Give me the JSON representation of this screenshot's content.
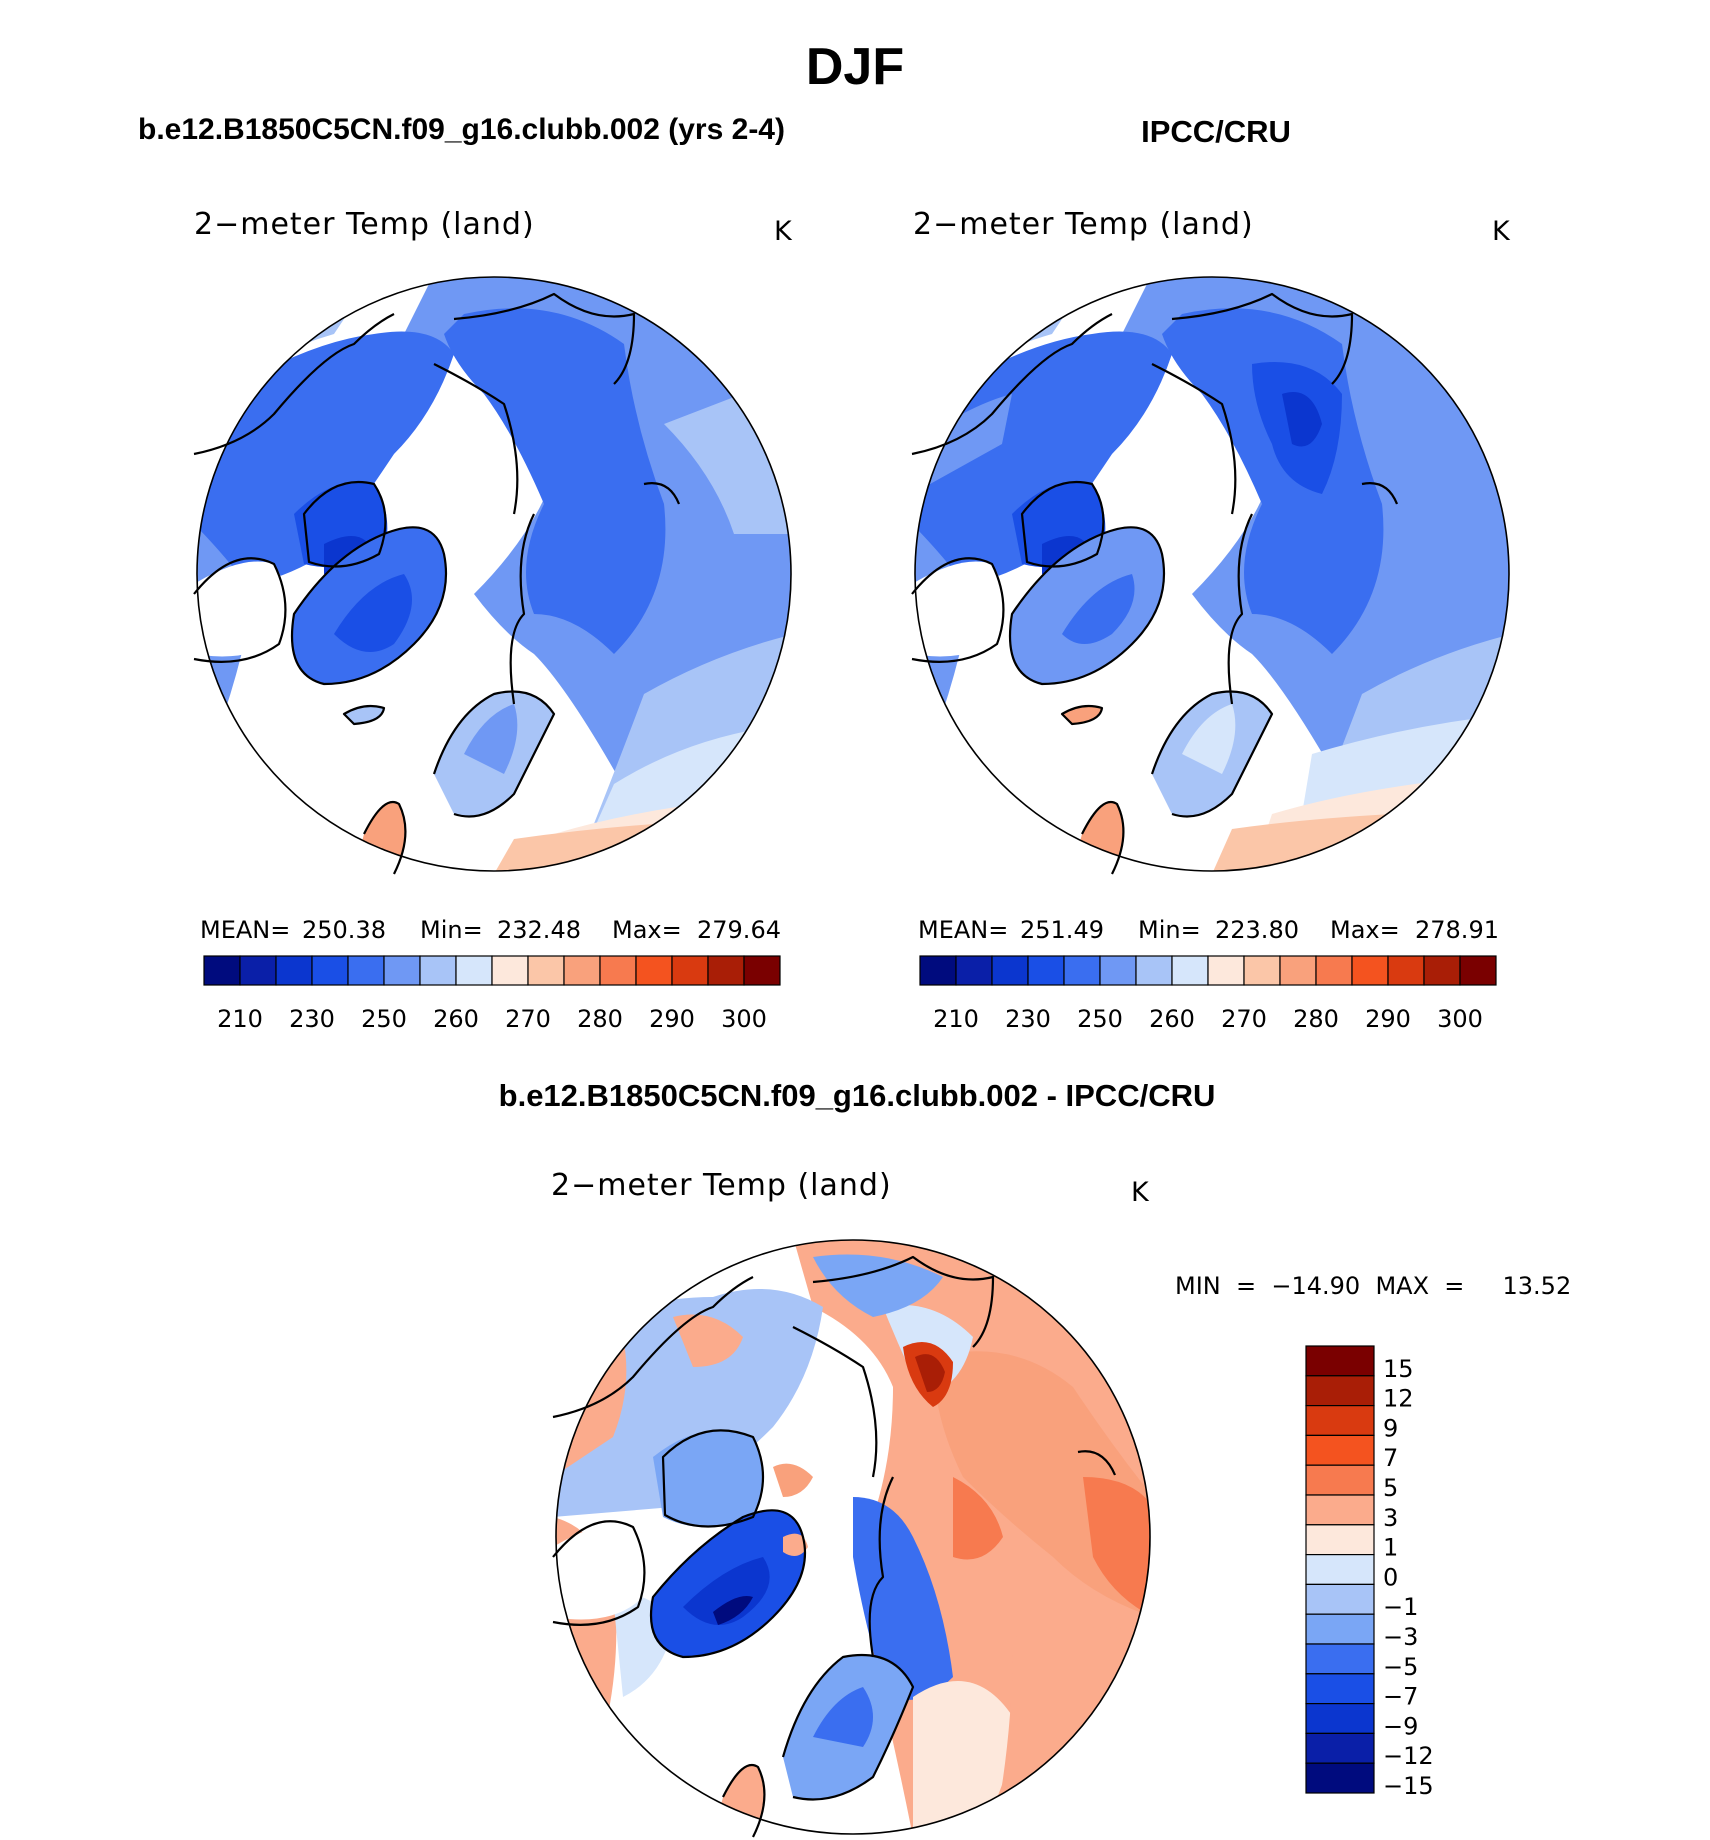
{
  "figure": {
    "season_title": "DJF",
    "model_title": "b.e12.B1850C5CN.f09_g16.clubb.002 (yrs 2-4)",
    "obs_title": "IPCC/CRU",
    "diff_title": "b.e12.B1850C5CN.f09_g16.clubb.002 - IPCC/CRU"
  },
  "panels": {
    "model": {
      "variable": "2−meter Temp (land)",
      "units": "K",
      "mean_label": "MEAN=",
      "mean_value": "250.38",
      "min_label": "Min=",
      "min_value": "232.48",
      "max_label": "Max=",
      "max_value": "279.64"
    },
    "obs": {
      "variable": "2−meter Temp (land)",
      "units": "K",
      "mean_label": "MEAN=",
      "mean_value": "251.49",
      "min_label": "Min=",
      "min_value": "223.80",
      "max_label": "Max=",
      "max_value": "278.91"
    },
    "diff": {
      "variable": "2−meter Temp (land)",
      "units": "K",
      "minmax_text": "MIN  =  −14.90  MAX  =     13.52"
    }
  },
  "colorbars": {
    "absolute": {
      "colors": [
        "#000b7e",
        "#0a1fa8",
        "#0b36cf",
        "#1a4fe6",
        "#3a6ef0",
        "#6f98f4",
        "#a8c4f7",
        "#d6e6fb",
        "#fde8dc",
        "#fbc6a8",
        "#f9a17c",
        "#f77a4f",
        "#f4531f",
        "#d93a10",
        "#a91e06",
        "#7a0000"
      ],
      "labels": [
        "210",
        "230",
        "250",
        "260",
        "270",
        "280",
        "290",
        "300"
      ]
    },
    "difference": {
      "colors": [
        "#7a0000",
        "#a91e06",
        "#d93a10",
        "#f4531f",
        "#f77a4f",
        "#fbab8c",
        "#fde8dc",
        "#d6e6fb",
        "#a8c4f7",
        "#7aa6f5",
        "#3a6ef0",
        "#1a4fe6",
        "#0b36cf",
        "#0a1fa8",
        "#000b7e"
      ],
      "labels": [
        "15",
        "12",
        "9",
        "7",
        "5",
        "3",
        "1",
        "0",
        "−1",
        "−3",
        "−5",
        "−7",
        "−9",
        "−12",
        "−15"
      ]
    }
  }
}
